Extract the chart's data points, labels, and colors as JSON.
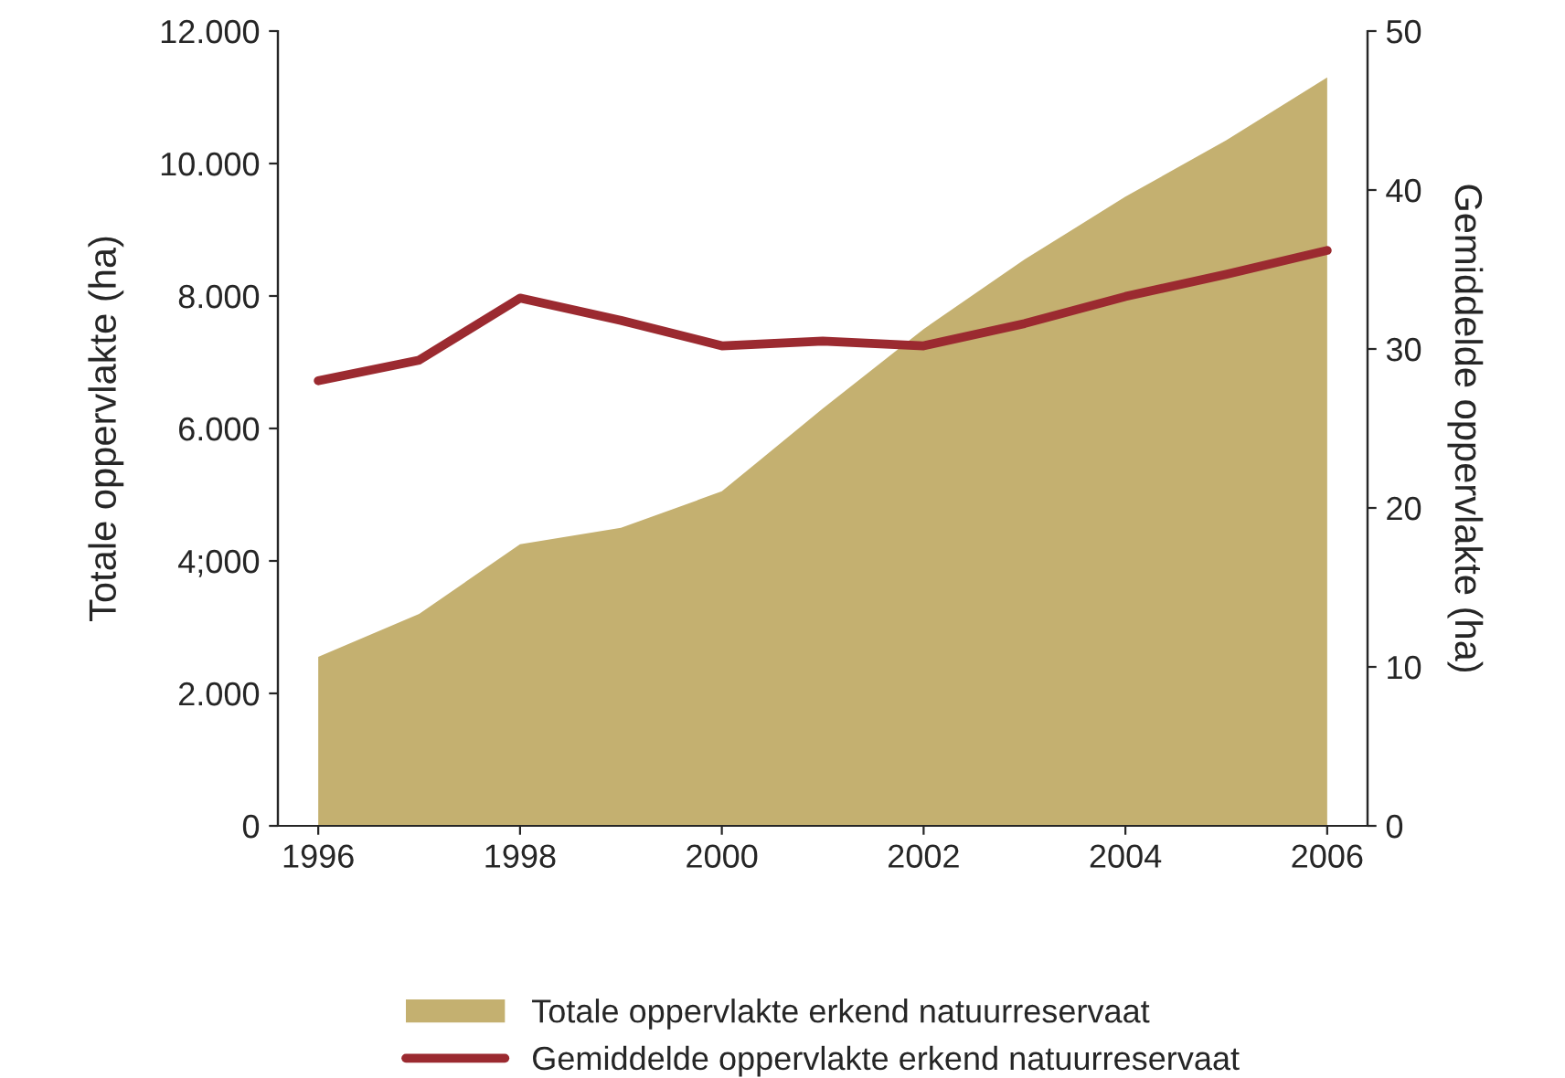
{
  "chart_data": {
    "type": "area",
    "xlabel": null,
    "ylabel": "Totale oppervlakte (ha)",
    "y2label": "Gemiddelde oppervlakte (ha)",
    "x": [
      1996,
      1997,
      1998,
      1999,
      2000,
      2001,
      2002,
      2003,
      2004,
      2005,
      2006
    ],
    "series": [
      {
        "name": "Totale oppervlakte erkend natuurreservaat",
        "color": "#c4b070",
        "values": [
          2550,
          3200,
          4250,
          4500,
          5050,
          6300,
          7500,
          8550,
          9500,
          10350,
          11300
        ]
      },
      {
        "name": "Gemiddelde oppervlakte erkend natuurreservaat",
        "type": "line",
        "axis": "y2",
        "color": "#9b2a30",
        "values": [
          28.0,
          29.3,
          33.2,
          31.8,
          30.2,
          30.5,
          30.2,
          31.6,
          33.3,
          34.7,
          36.2
        ]
      }
    ],
    "xlim": [
      1995.6,
      2006.4
    ],
    "xticks": [
      1996,
      1998,
      2000,
      2002,
      2004,
      2006
    ],
    "ylim": [
      0,
      12000
    ],
    "yticks": [
      {
        "value": 0,
        "label": "0"
      },
      {
        "value": 2000,
        "label": "2.000"
      },
      {
        "value": 4000,
        "label": "4;000"
      },
      {
        "value": 6000,
        "label": "6.000"
      },
      {
        "value": 8000,
        "label": "8.000"
      },
      {
        "value": 10000,
        "label": "10.000"
      },
      {
        "value": 12000,
        "label": "12.000"
      }
    ],
    "y2lim": [
      0,
      50
    ],
    "y2ticks": [
      0,
      10,
      20,
      30,
      40,
      50
    ],
    "grid": false,
    "legend": "bottom",
    "line_style": "solid",
    "marker": "none"
  }
}
